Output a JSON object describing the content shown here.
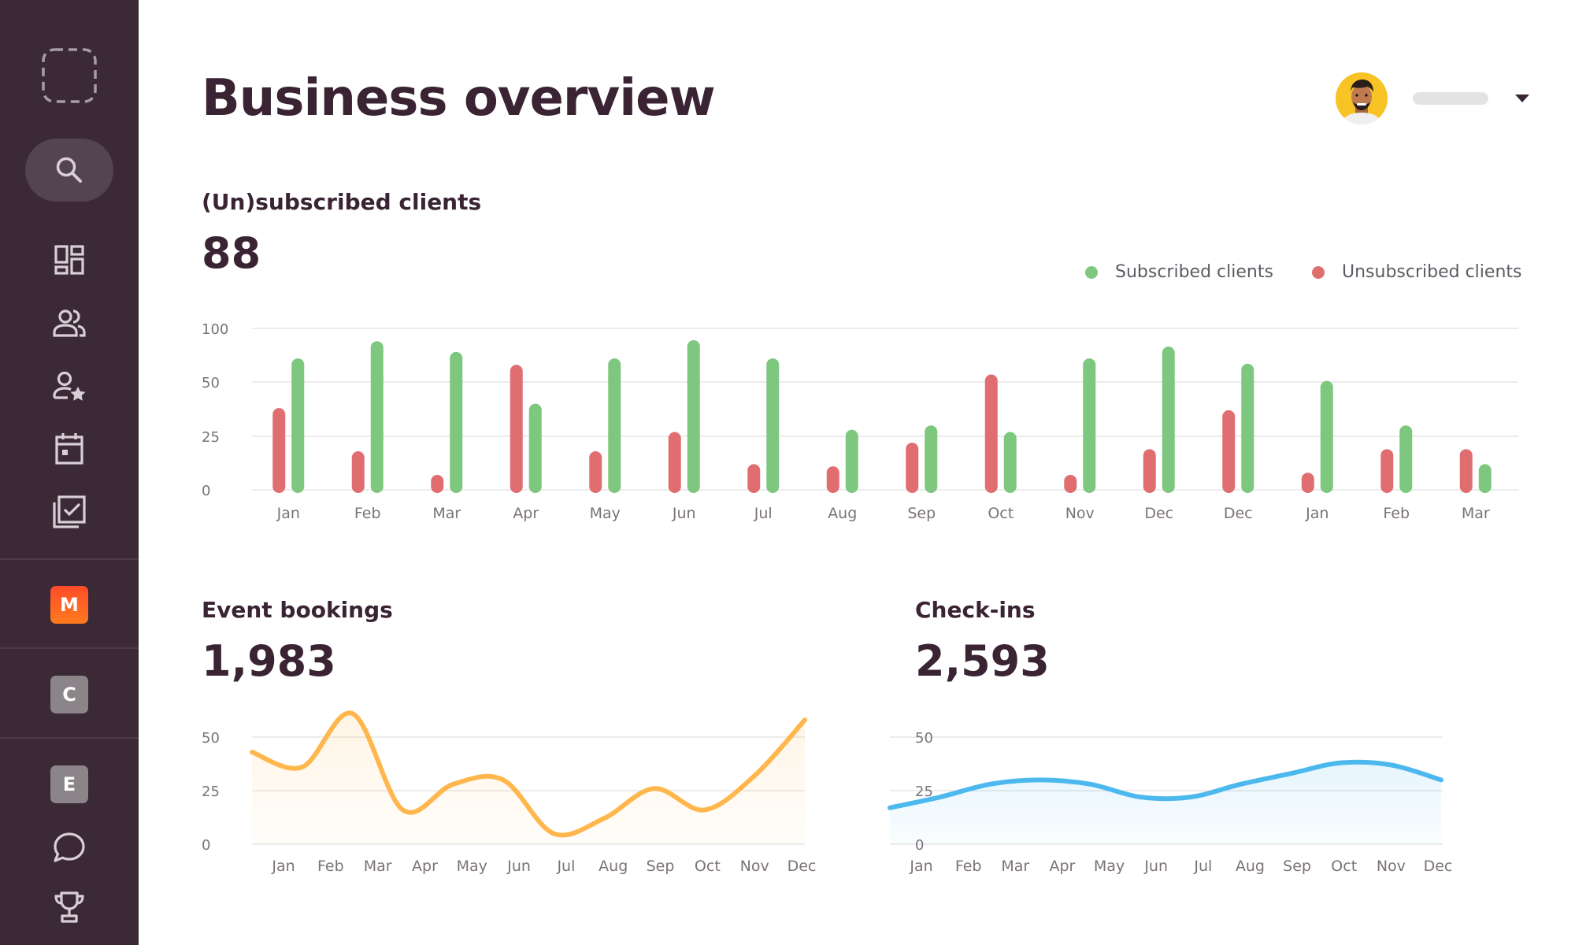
{
  "page": {
    "title": "Business overview"
  },
  "sidebar": {
    "items": [
      {
        "icon": "logo-placeholder-icon"
      },
      {
        "icon": "search-icon",
        "active": true
      },
      {
        "icon": "dashboard-icon"
      },
      {
        "icon": "users-icon"
      },
      {
        "icon": "user-star-icon"
      },
      {
        "icon": "calendar-icon"
      },
      {
        "icon": "checklist-icon"
      },
      {
        "icon": "trophy-icon"
      },
      {
        "icon": "chat-icon"
      }
    ],
    "badges": [
      {
        "letter": "M",
        "color": "#ff5a2a"
      },
      {
        "letter": "C",
        "color": "#8b8489"
      },
      {
        "letter": "E",
        "color": "#8b8489"
      }
    ]
  },
  "user": {
    "avatar_icon": "avatar",
    "dropdown_icon": "caret-down-icon"
  },
  "colors": {
    "subscribed": "#7dc77f",
    "unsubscribed": "#e06e70",
    "bookings": "#ffb74d",
    "checkins": "#4db8ee",
    "gridline": "#ececec",
    "tick": "#7a7379"
  },
  "subscriptions": {
    "title": "(Un)subscribed clients",
    "total": "88",
    "legend": {
      "subscribed": "Subscribed clients",
      "unsubscribed": "Unsubscribed clients"
    }
  },
  "bookings": {
    "title": "Event bookings",
    "total": "1,983"
  },
  "checkins": {
    "title": "Check-ins",
    "total": "2,593"
  },
  "chart_data": [
    {
      "type": "bar",
      "title": "(Un)subscribed clients",
      "categories": [
        "Jan",
        "Feb",
        "Mar",
        "Apr",
        "May",
        "Jun",
        "Jul",
        "Aug",
        "Sep",
        "Oct",
        "Nov",
        "Dec",
        "Dec",
        "Jan",
        "Feb",
        "Mar"
      ],
      "yticks": [
        0,
        25,
        50,
        100
      ],
      "series": [
        {
          "name": "Unsubscribed clients",
          "values": [
            38,
            18,
            7,
            66,
            18,
            27,
            12,
            11,
            22,
            57,
            7,
            19,
            37,
            8,
            19,
            19
          ]
        },
        {
          "name": "Subscribed clients",
          "values": [
            72,
            88,
            78,
            40,
            72,
            89,
            72,
            28,
            30,
            27,
            72,
            83,
            67,
            51,
            30,
            12
          ]
        }
      ],
      "grid": true,
      "legend": "top-right"
    },
    {
      "type": "area",
      "title": "Event bookings",
      "categories": [
        "Jan",
        "Feb",
        "Mar",
        "Apr",
        "May",
        "Jun",
        "Jul",
        "Aug",
        "Sep",
        "Oct",
        "Nov",
        "Dec"
      ],
      "yticks": [
        0,
        25,
        50
      ],
      "ylim": [
        0,
        50
      ],
      "values": [
        43,
        36,
        61,
        16,
        28,
        30,
        5,
        12,
        26,
        16,
        32,
        58
      ],
      "grid": true
    },
    {
      "type": "area",
      "title": "Check-ins",
      "categories": [
        "Jan",
        "Feb",
        "Mar",
        "Apr",
        "May",
        "Jun",
        "Jul",
        "Aug",
        "Sep",
        "Oct",
        "Nov",
        "Dec"
      ],
      "yticks": [
        0,
        25,
        50
      ],
      "ylim": [
        0,
        50
      ],
      "values": [
        17,
        22,
        28,
        30,
        28,
        22,
        22,
        28,
        33,
        38,
        37,
        30
      ],
      "grid": true
    }
  ]
}
